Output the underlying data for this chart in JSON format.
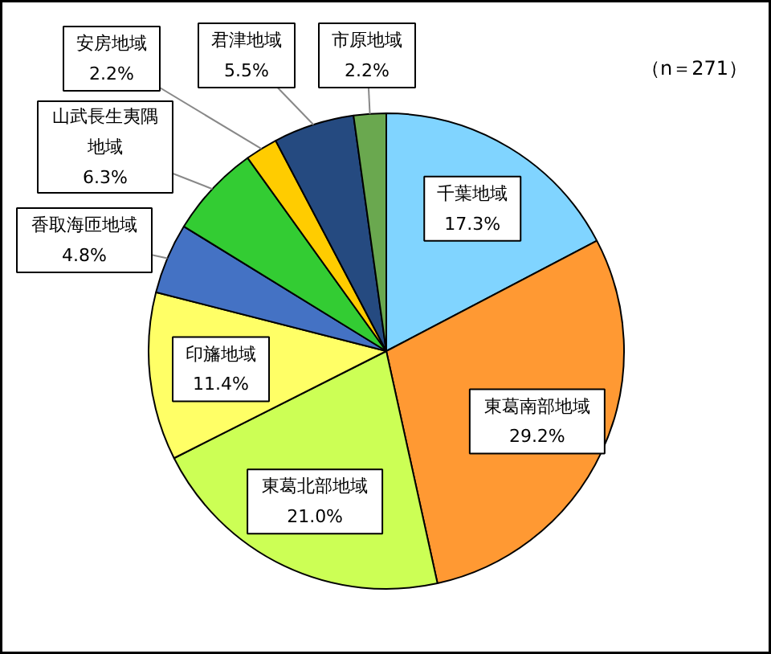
{
  "chart_data": {
    "type": "pie",
    "categories": [
      "千葉地域",
      "東葛南部地域",
      "東葛北部地域",
      "印旛地域",
      "香取海匝地域",
      "山武長生夷隅地域",
      "安房地域",
      "君津地域",
      "市原地域"
    ],
    "values": [
      17.3,
      29.2,
      21.0,
      11.4,
      4.8,
      6.3,
      2.2,
      5.5,
      2.2
    ],
    "colors": [
      "#80d4ff",
      "#ff9933",
      "#ccff55",
      "#ffff66",
      "#4472c4",
      "#33cc33",
      "#ffcc00",
      "#254a80",
      "#6aa84f"
    ],
    "value_labels": [
      "17.3%",
      "29.2%",
      "21.0%",
      "11.4%",
      "4.8%",
      "6.3%",
      "2.2%",
      "5.5%",
      "2.2%"
    ],
    "annotations": [
      "（n＝271）"
    ]
  }
}
